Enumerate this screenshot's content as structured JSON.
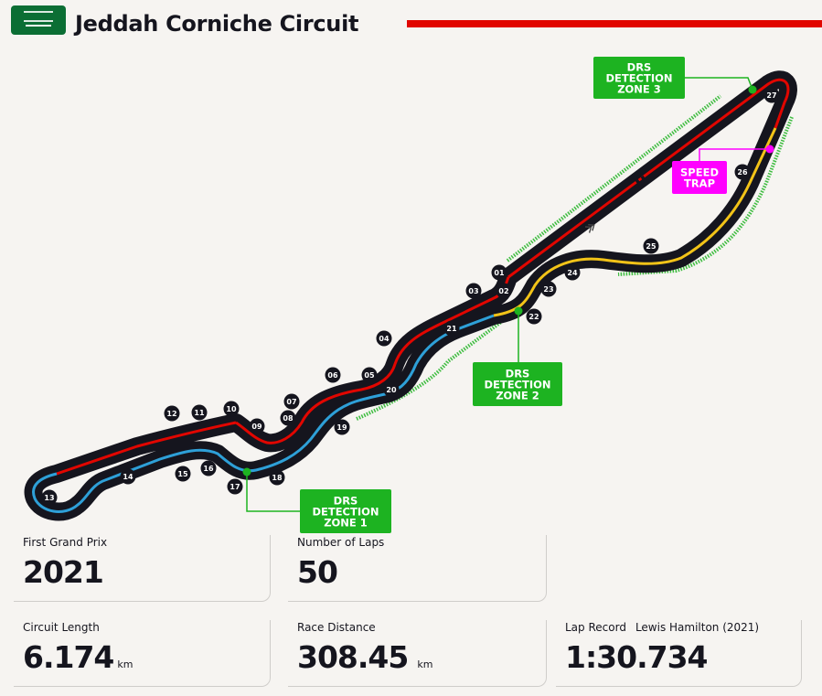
{
  "header": {
    "title": "Jeddah Corniche Circuit",
    "flag_icon": "saudi-arabia-flag-icon",
    "accent_color": "#e10600"
  },
  "map": {
    "turns": [
      "01",
      "02",
      "03",
      "04",
      "05",
      "06",
      "07",
      "08",
      "09",
      "10",
      "11",
      "12",
      "13",
      "14",
      "15",
      "16",
      "17",
      "18",
      "19",
      "20",
      "21",
      "22",
      "23",
      "24",
      "25",
      "26",
      "27"
    ],
    "callouts": {
      "drs1": [
        "DRS",
        "DETECTION",
        "ZONE 1"
      ],
      "drs2": [
        "DRS",
        "DETECTION",
        "ZONE 2"
      ],
      "drs3": [
        "DRS",
        "DETECTION",
        "ZONE 3"
      ],
      "speed_trap": [
        "SPEED",
        "TRAP"
      ]
    },
    "colors": {
      "track": "#15151e",
      "sector1": "#e10600",
      "sector2": "#2ea0d8",
      "sector3": "#f2c318",
      "drs": "#1db321",
      "speed_trap": "#ff00ff"
    },
    "icons": [
      "chequered-flag-icon",
      "start-direction-chevrons-icon"
    ]
  },
  "stats": {
    "first_gp": {
      "label": "First Grand Prix",
      "value": "2021"
    },
    "laps": {
      "label": "Number of Laps",
      "value": "50"
    },
    "length": {
      "label": "Circuit Length",
      "value": "6.174",
      "unit": "km"
    },
    "distance": {
      "label": "Race Distance",
      "value": "308.45",
      "unit": "km"
    },
    "lap_record": {
      "label": "Lap Record",
      "holder": "Lewis Hamilton (2021)",
      "value": "1:30.734"
    }
  }
}
